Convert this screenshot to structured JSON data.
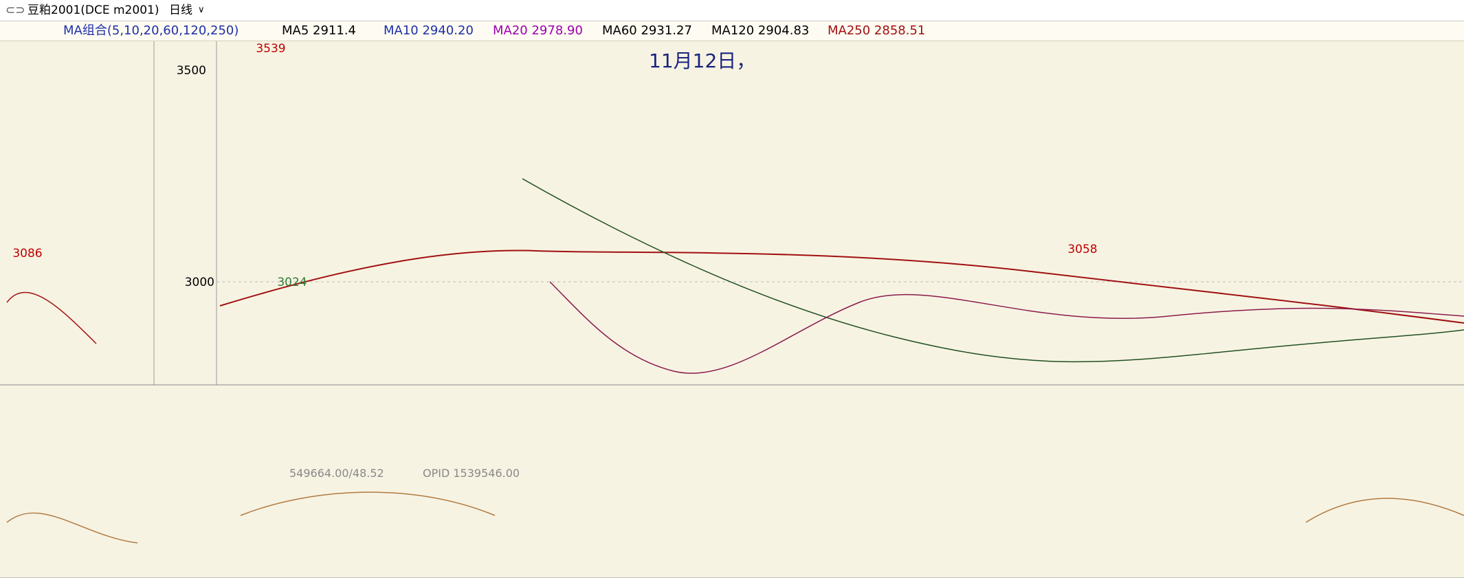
{
  "toolbar": {
    "symbol": "豆粕2001(DCE m2001)",
    "period": "日线"
  },
  "ma_legend": {
    "group": "MA组合(5,10,20,60,120,250)",
    "items": [
      {
        "label": "MA5 2911.4",
        "color": "#000000"
      },
      {
        "label": "MA10 2940.20",
        "color": "#1f2fa8"
      },
      {
        "label": "MA20 2978.90",
        "color": "#9b00b0"
      },
      {
        "label": "MA60 2931.27",
        "color": "#000000"
      },
      {
        "label": "MA120 2904.83",
        "color": "#000000"
      },
      {
        "label": "MA250 2858.51",
        "color": "#a01010"
      }
    ]
  },
  "headline": "11月12日，",
  "price_axis": {
    "labels": [
      "3500",
      "3000"
    ]
  },
  "price_annotations": [
    "3539",
    "3086",
    "3024",
    "3058"
  ],
  "indicator": {
    "volume": "549664.00/48.52",
    "open_interest": "OPID 1539546.00"
  }
}
